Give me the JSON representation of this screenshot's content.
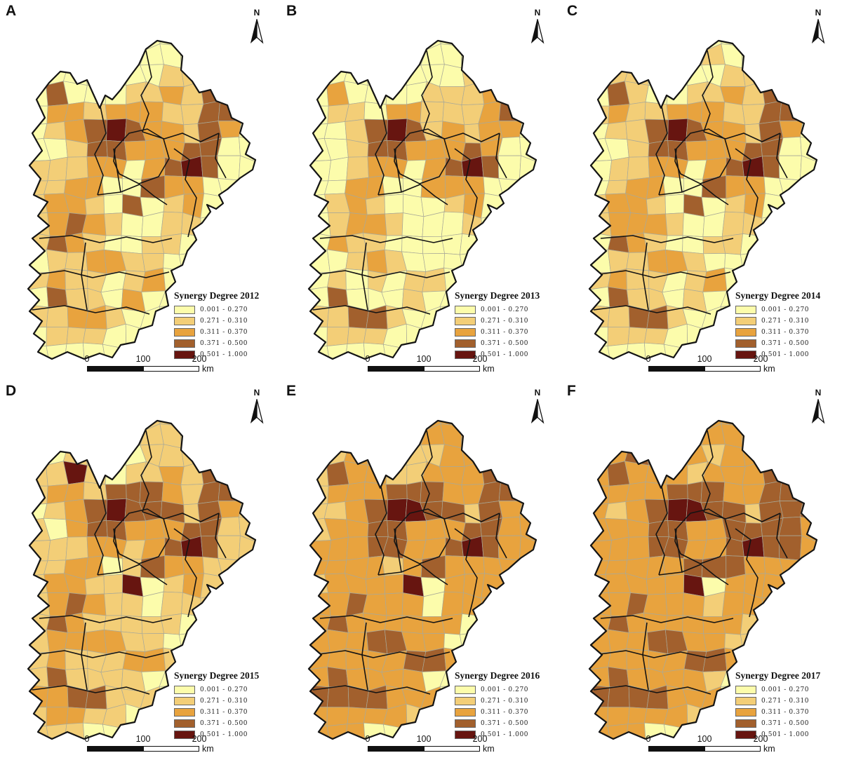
{
  "figure": {
    "north_label": "N",
    "scalebar": {
      "ticks": [
        "0",
        "100",
        "200"
      ],
      "unit": "km"
    },
    "legend_classes": [
      {
        "label": "0.001 - 0.270",
        "color": "#FCFCAB"
      },
      {
        "label": "0.271 - 0.310",
        "color": "#F3CE77"
      },
      {
        "label": "0.311 - 0.370",
        "color": "#E8A33E"
      },
      {
        "label": "0.371 - 0.500",
        "color": "#A2602D"
      },
      {
        "label": "0.501 - 1.000",
        "color": "#671510"
      }
    ],
    "boundary_colors": {
      "county": "#a9a998",
      "prefecture": "#141414",
      "outline": "#141414"
    },
    "panels": [
      {
        "letter": "A",
        "legend_title": "Synergy Degree 2012",
        "grid": [
          "1111111111111",
          "1111111111111",
          "1111111122211",
          "1141112232421",
          "1133233322441",
          "1123454332431",
          "1112443334411",
          "1222331345411",
          "1223311433111",
          "1233214123111",
          "1234321122111",
          "1243211221111",
          "1122332211111",
          "1232212311111",
          "1142213111111",
          "1223321111111",
          "1122211111111",
          "1111111111111"
        ]
      },
      {
        "letter": "B",
        "legend_title": "Synergy Degree 2013",
        "grid": [
          "1111111111111",
          "1111111111111",
          "1111111112211",
          "1131111222321",
          "1122133222341",
          "1112454232331",
          "1112443334311",
          "1112331345411",
          "1113311333111",
          "1123211123111",
          "1123321112111",
          "1132211111111",
          "1112321111111",
          "1121212211111",
          "1141112111111",
          "1224421111111",
          "1122211111111",
          "1111111111111"
        ]
      },
      {
        "letter": "C",
        "legend_title": "Synergy Degree 2014",
        "grid": [
          "1211111111111",
          "1221111211111",
          "1222111122211",
          "1142112232421",
          "1232233322441",
          "1122454332431",
          "1112443334411",
          "1122331345411",
          "1123311433111",
          "1233214123111",
          "1233321122111",
          "1143211221111",
          "1122332111111",
          "1232212311111",
          "1142212111111",
          "1224421111111",
          "1122211111111",
          "1111111111111"
        ]
      },
      {
        "letter": "D",
        "legend_title": "Synergy Degree 2015",
        "grid": [
          "2222222222222",
          "2222122222222",
          "2212211222322",
          "2225212232422",
          "2233244432442",
          "2123454442432",
          "2213443334422",
          "2222332345422",
          "2223312433222",
          "2233225123222",
          "2234322122222",
          "2243222221222",
          "1233332211111",
          "2232223322111",
          "1242222111111",
          "2334422211111",
          "1233221111111",
          "2222111111111"
        ]
      },
      {
        "letter": "E",
        "legend_title": "Synergy Degree 2016",
        "grid": [
          "3333333333333",
          "2233233333333",
          "2223322233333",
          "2243322333433",
          "2233344433443",
          "2223455442433",
          "2233443334433",
          "3333443345433",
          "2333323433333",
          "3233335133333",
          "3334333133333",
          "3343333331333",
          "1333443311111",
          "3333334433111",
          "3343333111111",
          "3444433311111",
          "3333332111111",
          "3333111111111"
        ]
      },
      {
        "letter": "F",
        "legend_title": "Synergy Degree 2017",
        "grid": [
          "3333333333333",
          "3333333333333",
          "3334433233333",
          "3343332333433",
          "3333344433443",
          "3323455442444",
          "3333443344443",
          "3333443345443",
          "3333334443333",
          "3333335133333",
          "3334333233333",
          "3343333332333",
          "3333443322111",
          "3333334433111",
          "3343333211111",
          "3444433311111",
          "3333332111111",
          "3333111111111"
        ]
      }
    ]
  }
}
